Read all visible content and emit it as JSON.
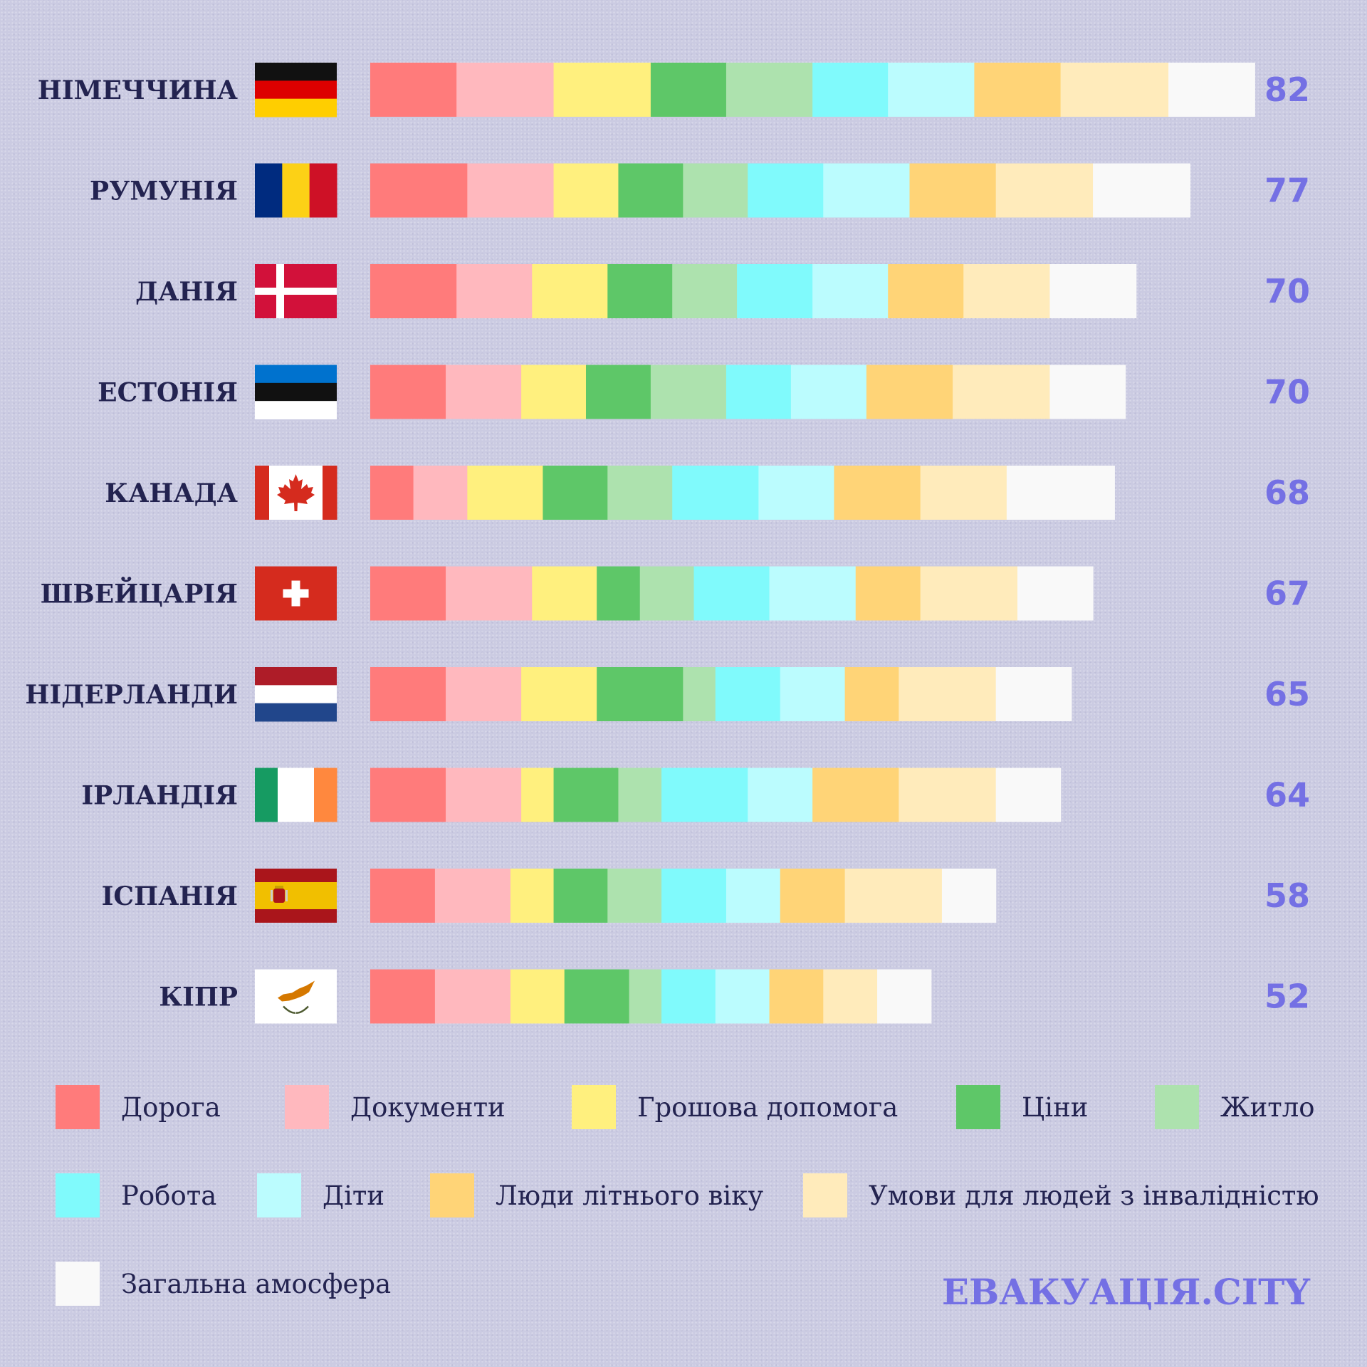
{
  "chart_data": {
    "type": "bar",
    "stacked": true,
    "orientation": "horizontal",
    "categories": [
      "НІМЕЧЧИНА",
      "РУМУНІЯ",
      "ДАНІЯ",
      "ЕСТОНІЯ",
      "КАНАДА",
      "ШВЕЙЦАРІЯ",
      "НІДЕРЛАНДИ",
      "ІРЛАНДІЯ",
      "ІСПАНІЯ",
      "КІПР"
    ],
    "flags": [
      "germany-flag",
      "romania-flag",
      "denmark-flag",
      "estonia-flag",
      "canada-flag",
      "switzerland-flag",
      "netherlands-flag",
      "ireland-flag",
      "spain-flag",
      "cyprus-flag"
    ],
    "totals": [
      "82",
      "77",
      "70",
      "70",
      "68",
      "67",
      "65",
      "64",
      "58",
      "52"
    ],
    "series": [
      {
        "name": "Дорога",
        "color": "#ff7b7b",
        "values": [
          8,
          9,
          8,
          7,
          4,
          7,
          7,
          7,
          6,
          6
        ]
      },
      {
        "name": "Документи",
        "color": "#ffb8be",
        "values": [
          9,
          8,
          7,
          7,
          5,
          8,
          7,
          7,
          7,
          7
        ]
      },
      {
        "name": "Грошова допомога",
        "color": "#fff07e",
        "values": [
          9,
          6,
          7,
          6,
          7,
          6,
          7,
          3,
          4,
          5
        ]
      },
      {
        "name": "Ціни",
        "color": "#5ec768",
        "values": [
          7,
          6,
          6,
          6,
          6,
          4,
          8,
          6,
          5,
          6
        ]
      },
      {
        "name": "Житло",
        "color": "#ade2ae",
        "values": [
          8,
          6,
          6,
          7,
          6,
          5,
          3,
          4,
          5,
          3
        ]
      },
      {
        "name": "Робота",
        "color": "#80fafc",
        "values": [
          7,
          7,
          7,
          6,
          8,
          7,
          6,
          8,
          6,
          5
        ]
      },
      {
        "name": "Діти",
        "color": "#bbfcfe",
        "values": [
          8,
          8,
          7,
          7,
          7,
          8,
          6,
          6,
          5,
          5
        ]
      },
      {
        "name": "Люди літнього віку",
        "color": "#ffd477",
        "values": [
          8,
          8,
          7,
          8,
          8,
          6,
          5,
          8,
          6,
          5
        ]
      },
      {
        "name": "Умови для людей з інвалідністю",
        "color": "#ffebbb",
        "values": [
          10,
          9,
          8,
          9,
          8,
          9,
          9,
          9,
          9,
          5
        ]
      },
      {
        "name": "Загальна амосфера",
        "color": "#f9f9f9",
        "values": [
          8,
          9,
          8,
          7,
          10,
          7,
          7,
          6,
          5,
          5
        ]
      }
    ]
  },
  "brand": "ЕВАКУАЦІЯ.CITY"
}
